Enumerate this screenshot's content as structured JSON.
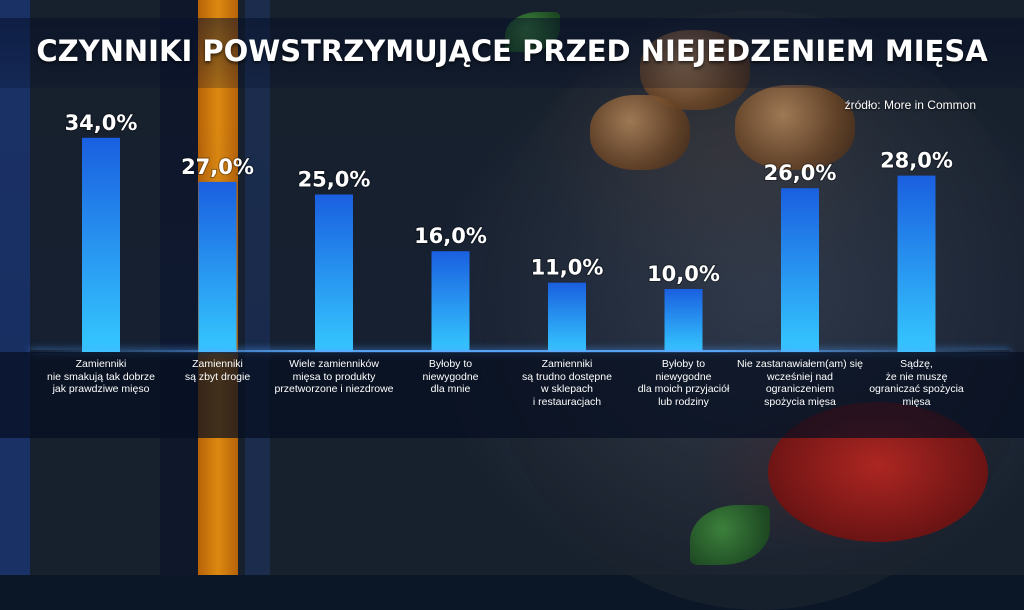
{
  "title": "CZYNNIKI POWSTRZYMUJĄCE PRZED NIEJEDZENIEM MIĘSA",
  "source": "źródło: More in Common",
  "colors": {
    "bar_top": "#1a5fe0",
    "bar_bottom": "#35c8ff",
    "label_text": "#ffffff"
  },
  "chart_data": {
    "type": "bar",
    "title": "CZYNNIKI POWSTRZYMUJĄCE PRZED NIEJEDZENIEM MIĘSA",
    "categories": [
      "Zamienniki\nnie smakują tak dobrze\njak prawdziwe mięso",
      "Zamienniki\nsą zbyt drogie",
      "Wiele zamienników\nmięsa to produkty\nprzetworzone i niezdrowe",
      "Byłoby to\nniewygodne\ndla mnie",
      "Zamienniki\nsą trudno dostępne\nw sklepach\ni restauracjach",
      "Byłoby to\nniewygodne\ndla moich przyjaciół\nlub rodziny",
      "Nie zastanawiałem(am) się\nwcześniej nad\nograniczeniem\nspożycia mięsa",
      "Sądzę,\nże nie muszę\nograniczać spożycia\nmięsa"
    ],
    "values": [
      34.0,
      27.0,
      25.0,
      16.0,
      11.0,
      10.0,
      26.0,
      28.0
    ],
    "value_labels": [
      "34,0%",
      "27,0%",
      "25,0%",
      "16,0%",
      "11,0%",
      "10,0%",
      "26,0%",
      "28,0%"
    ],
    "ylim": [
      0,
      40
    ],
    "xlabel": "",
    "ylabel": "",
    "grid": false,
    "legend": "none"
  }
}
